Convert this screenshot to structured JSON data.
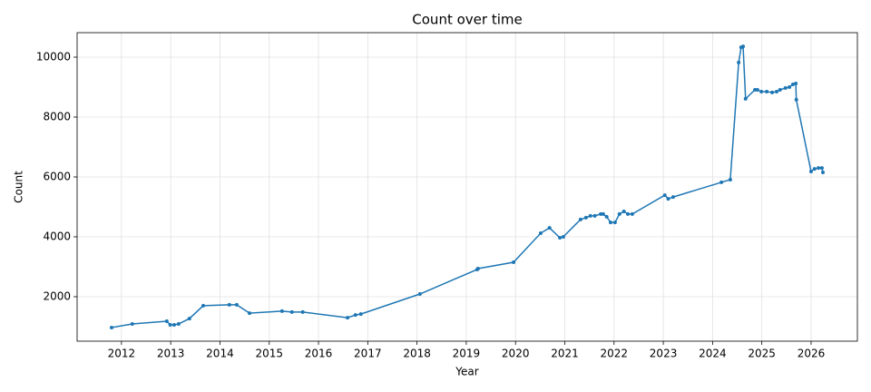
{
  "chart_data": {
    "type": "line",
    "title": "Count over time",
    "x_label": "Year",
    "y_label": "Count",
    "x": [
      2011.8,
      2012.22,
      2012.92,
      2012.99,
      2013.07,
      2013.16,
      2013.38,
      2013.66,
      2014.19,
      2014.34,
      2014.6,
      2015.26,
      2015.46,
      2015.68,
      2016.59,
      2016.75,
      2016.86,
      2018.06,
      2019.22,
      2019.24,
      2019.96,
      2020.51,
      2020.69,
      2020.9,
      2020.97,
      2021.32,
      2021.43,
      2021.52,
      2021.61,
      2021.73,
      2021.78,
      2021.85,
      2021.93,
      2022.02,
      2022.11,
      2022.2,
      2022.28,
      2022.37,
      2023.03,
      2023.1,
      2023.2,
      2024.18,
      2024.36,
      2024.53,
      2024.58,
      2024.62,
      2024.67,
      2024.86,
      2024.91,
      2024.99,
      2025.1,
      2025.21,
      2025.3,
      2025.37,
      2025.48,
      2025.56,
      2025.63,
      2025.69,
      2025.7,
      2026.0,
      2026.07,
      2026.15,
      2026.22,
      2026.24
    ],
    "values": [
      970,
      1090,
      1180,
      1060,
      1060,
      1090,
      1270,
      1700,
      1730,
      1730,
      1450,
      1520,
      1490,
      1490,
      1300,
      1390,
      1420,
      2090,
      2910,
      2940,
      3150,
      4120,
      4300,
      3970,
      4000,
      4580,
      4640,
      4700,
      4700,
      4760,
      4760,
      4670,
      4480,
      4480,
      4760,
      4850,
      4760,
      4760,
      5390,
      5270,
      5330,
      5820,
      5910,
      9820,
      10330,
      10360,
      8610,
      8910,
      8910,
      8850,
      8850,
      8820,
      8850,
      8910,
      8970,
      9000,
      9090,
      9120,
      8580,
      6180,
      6270,
      6300,
      6300,
      6150
    ],
    "color": "#1f77b4",
    "xlim": [
      2011.1,
      2026.94
    ],
    "xticks": [
      2012,
      2013,
      2014,
      2015,
      2016,
      2017,
      2018,
      2019,
      2020,
      2021,
      2022,
      2023,
      2024,
      2025,
      2026
    ],
    "ylim": [
      515,
      10818
    ],
    "yticks": [
      2000,
      4000,
      6000,
      8000,
      10000
    ],
    "grid": true
  }
}
